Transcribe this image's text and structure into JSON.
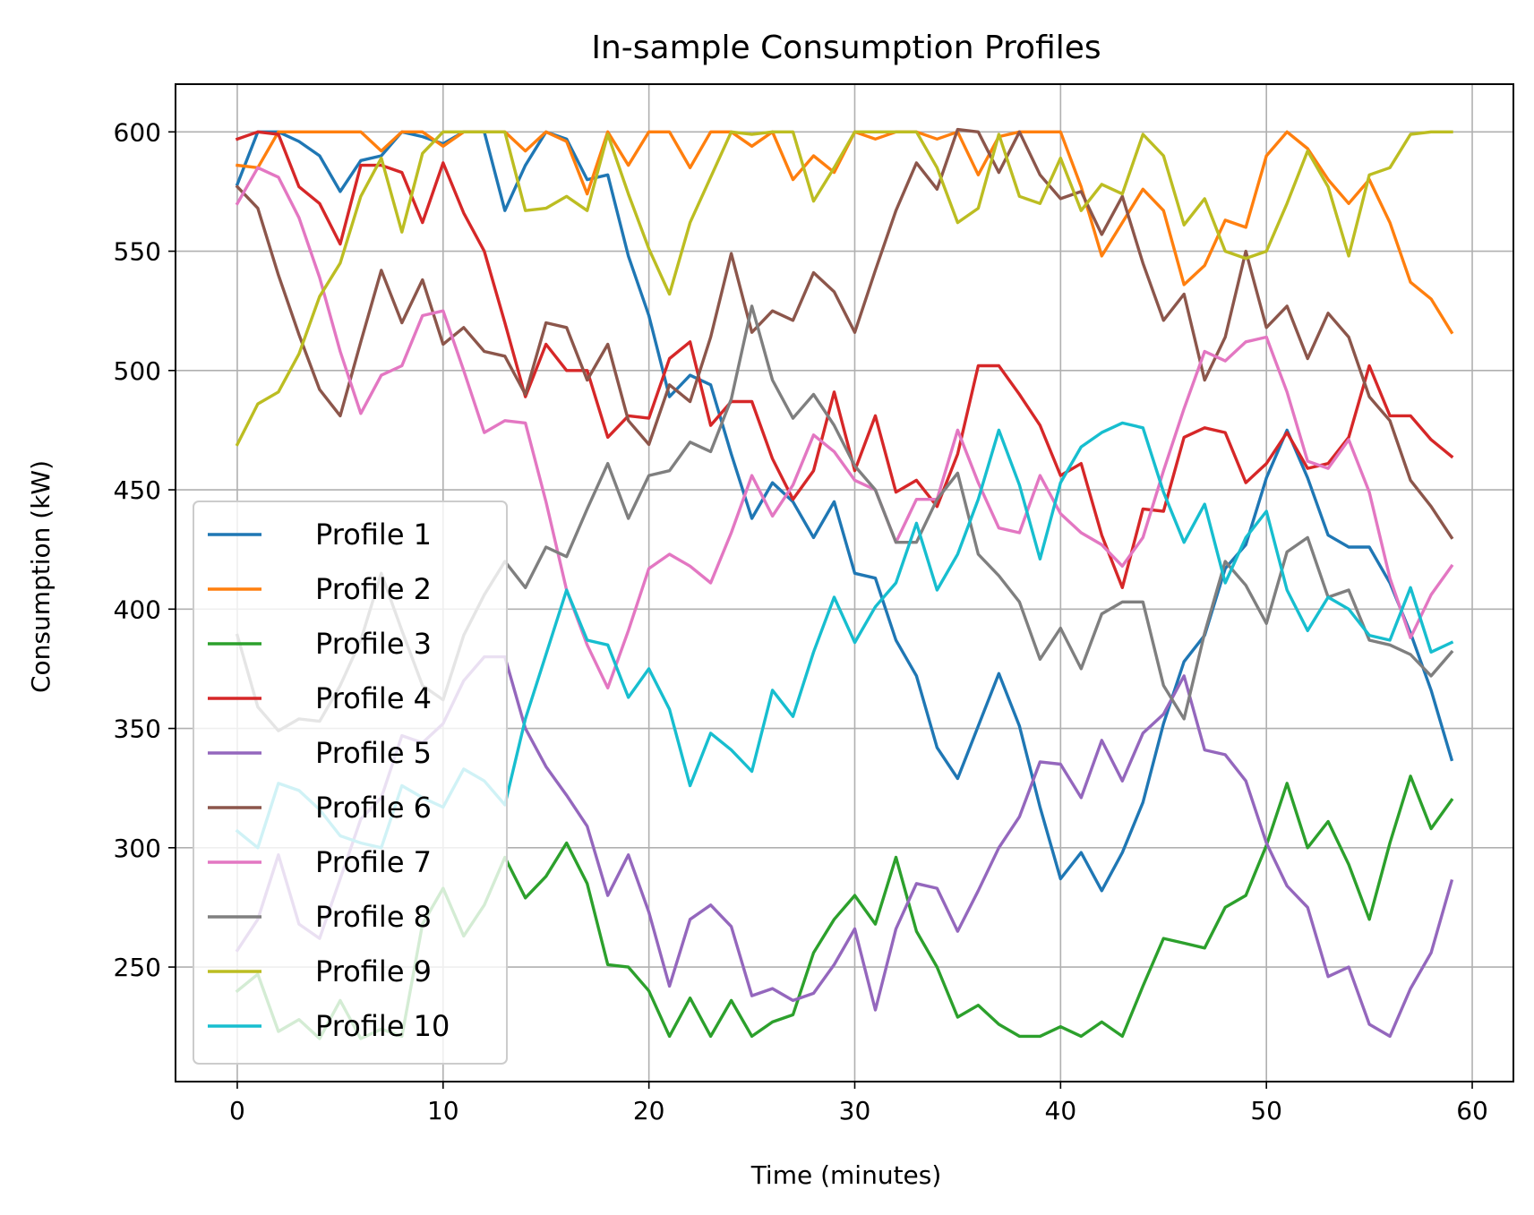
{
  "chart_data": {
    "type": "line",
    "title": "In-sample Consumption Profiles",
    "xlabel": "Time (minutes)",
    "ylabel": "Consumption (kW)",
    "xlim": [
      -3,
      62
    ],
    "ylim": [
      202,
      620
    ],
    "xticks": [
      0,
      10,
      20,
      30,
      40,
      50,
      60
    ],
    "yticks": [
      250,
      300,
      350,
      400,
      450,
      500,
      550,
      600
    ],
    "grid": true,
    "legend_position": "lower-left",
    "x": [
      0,
      1,
      2,
      3,
      4,
      5,
      6,
      7,
      8,
      9,
      10,
      11,
      12,
      13,
      14,
      15,
      16,
      17,
      18,
      19,
      20,
      21,
      22,
      23,
      24,
      25,
      26,
      27,
      28,
      29,
      30,
      31,
      32,
      33,
      34,
      35,
      36,
      37,
      38,
      39,
      40,
      41,
      42,
      43,
      44,
      45,
      46,
      47,
      48,
      49,
      50,
      51,
      52,
      53,
      54,
      55,
      56,
      57,
      58,
      59
    ],
    "series": [
      {
        "name": "Profile 1",
        "color": "#1f77b4",
        "values": [
          578,
          600,
          600,
          596,
          590,
          575,
          588,
          590,
          600,
          598,
          595,
          600,
          600,
          567,
          586,
          600,
          597,
          580,
          582,
          548,
          523,
          489,
          498,
          494,
          465,
          438,
          453,
          445,
          430,
          445,
          415,
          413,
          387,
          372,
          342,
          329,
          351,
          373,
          351,
          317,
          287,
          298,
          282,
          298,
          319,
          352,
          378,
          389,
          417,
          427,
          455,
          475,
          455,
          431,
          426,
          426,
          411,
          390,
          366,
          337
        ]
      },
      {
        "name": "Profile 2",
        "color": "#ff7f0e",
        "values": [
          586,
          585,
          600,
          600,
          600,
          600,
          600,
          592,
          600,
          600,
          594,
          600,
          600,
          600,
          592,
          600,
          596,
          574,
          600,
          586,
          600,
          600,
          585,
          600,
          600,
          594,
          600,
          580,
          590,
          583,
          600,
          597,
          600,
          600,
          597,
          600,
          582,
          598,
          600,
          600,
          600,
          577,
          548,
          562,
          576,
          567,
          536,
          544,
          563,
          560,
          590,
          600,
          593,
          580,
          570,
          580,
          562,
          537,
          530,
          516
        ]
      },
      {
        "name": "Profile 3",
        "color": "#2ca02c",
        "values": [
          240,
          247,
          223,
          228,
          220,
          236,
          220,
          224,
          221,
          268,
          283,
          263,
          276,
          296,
          279,
          288,
          302,
          285,
          251,
          250,
          240,
          221,
          237,
          221,
          236,
          221,
          227,
          230,
          256,
          270,
          280,
          268,
          296,
          265,
          250,
          229,
          234,
          226,
          221,
          221,
          225,
          221,
          227,
          221,
          242,
          262,
          260,
          258,
          275,
          280,
          301,
          327,
          300,
          311,
          293,
          270,
          302,
          330,
          308,
          320
        ]
      },
      {
        "name": "Profile 4",
        "color": "#d62728",
        "values": [
          597,
          600,
          599,
          577,
          570,
          553,
          586,
          586,
          583,
          562,
          587,
          566,
          550,
          520,
          489,
          511,
          500,
          500,
          472,
          481,
          480,
          505,
          512,
          477,
          487,
          487,
          463,
          446,
          458,
          491,
          458,
          481,
          449,
          454,
          443,
          465,
          502,
          502,
          490,
          477,
          456,
          461,
          431,
          409,
          442,
          441,
          472,
          476,
          474,
          453,
          461,
          474,
          459,
          461,
          472,
          502,
          481,
          481,
          471,
          464
        ]
      },
      {
        "name": "Profile 5",
        "color": "#9467bd",
        "values": [
          257,
          270,
          297,
          268,
          262,
          287,
          312,
          321,
          347,
          344,
          352,
          370,
          380,
          380,
          350,
          334,
          322,
          309,
          280,
          297,
          273,
          242,
          270,
          276,
          267,
          238,
          241,
          236,
          239,
          251,
          266,
          232,
          266,
          285,
          283,
          265,
          282,
          300,
          313,
          336,
          335,
          321,
          345,
          328,
          348,
          356,
          372,
          341,
          339,
          328,
          302,
          284,
          275,
          246,
          250,
          226,
          221,
          241,
          256,
          286
        ]
      },
      {
        "name": "Profile 6",
        "color": "#8c564b",
        "values": [
          577,
          568,
          540,
          515,
          492,
          481,
          512,
          542,
          520,
          538,
          511,
          518,
          508,
          506,
          490,
          520,
          518,
          496,
          511,
          479,
          469,
          494,
          487,
          514,
          549,
          516,
          525,
          521,
          541,
          533,
          516,
          542,
          567,
          587,
          576,
          601,
          600,
          583,
          600,
          582,
          572,
          575,
          557,
          573,
          545,
          521,
          532,
          496,
          514,
          550,
          518,
          527,
          505,
          524,
          514,
          489,
          479,
          454,
          443,
          430
        ]
      },
      {
        "name": "Profile 7",
        "color": "#e377c2",
        "values": [
          570,
          585,
          581,
          564,
          539,
          508,
          482,
          498,
          502,
          523,
          525,
          500,
          474,
          479,
          478,
          445,
          408,
          385,
          367,
          391,
          417,
          423,
          418,
          411,
          432,
          456,
          439,
          452,
          473,
          466,
          454,
          450,
          428,
          446,
          446,
          475,
          453,
          434,
          432,
          456,
          440,
          432,
          427,
          418,
          430,
          458,
          484,
          508,
          504,
          512,
          514,
          491,
          462,
          459,
          471,
          449,
          413,
          388,
          406,
          418
        ]
      },
      {
        "name": "Profile 8",
        "color": "#7f7f7f",
        "values": [
          389,
          359,
          349,
          354,
          353,
          368,
          387,
          415,
          391,
          368,
          362,
          389,
          406,
          420,
          409,
          426,
          422,
          442,
          461,
          438,
          456,
          458,
          470,
          466,
          488,
          527,
          496,
          480,
          490,
          477,
          460,
          450,
          428,
          428,
          446,
          457,
          423,
          414,
          403,
          379,
          392,
          375,
          398,
          403,
          403,
          368,
          354,
          390,
          420,
          410,
          394,
          424,
          430,
          405,
          408,
          387,
          385,
          381,
          372,
          382
        ]
      },
      {
        "name": "Profile 9",
        "color": "#bcbd22",
        "values": [
          469,
          486,
          491,
          507,
          531,
          545,
          573,
          589,
          558,
          591,
          600,
          600,
          600,
          600,
          567,
          568,
          573,
          567,
          599,
          574,
          551,
          532,
          562,
          581,
          600,
          599,
          600,
          600,
          571,
          585,
          600,
          600,
          600,
          600,
          585,
          562,
          568,
          599,
          573,
          570,
          589,
          567,
          578,
          574,
          599,
          590,
          561,
          572,
          550,
          547,
          550,
          570,
          592,
          577,
          548,
          582,
          585,
          599,
          600,
          600
        ]
      },
      {
        "name": "Profile 10",
        "color": "#17becf",
        "values": [
          307,
          300,
          327,
          324,
          316,
          305,
          302,
          300,
          326,
          321,
          317,
          333,
          328,
          318,
          354,
          381,
          408,
          387,
          385,
          363,
          375,
          358,
          326,
          348,
          341,
          332,
          366,
          355,
          382,
          405,
          386,
          401,
          411,
          436,
          408,
          423,
          446,
          475,
          452,
          421,
          453,
          468,
          474,
          478,
          476,
          449,
          428,
          444,
          411,
          430,
          441,
          408,
          391,
          405,
          400,
          389,
          387,
          409,
          382,
          386
        ]
      }
    ]
  }
}
